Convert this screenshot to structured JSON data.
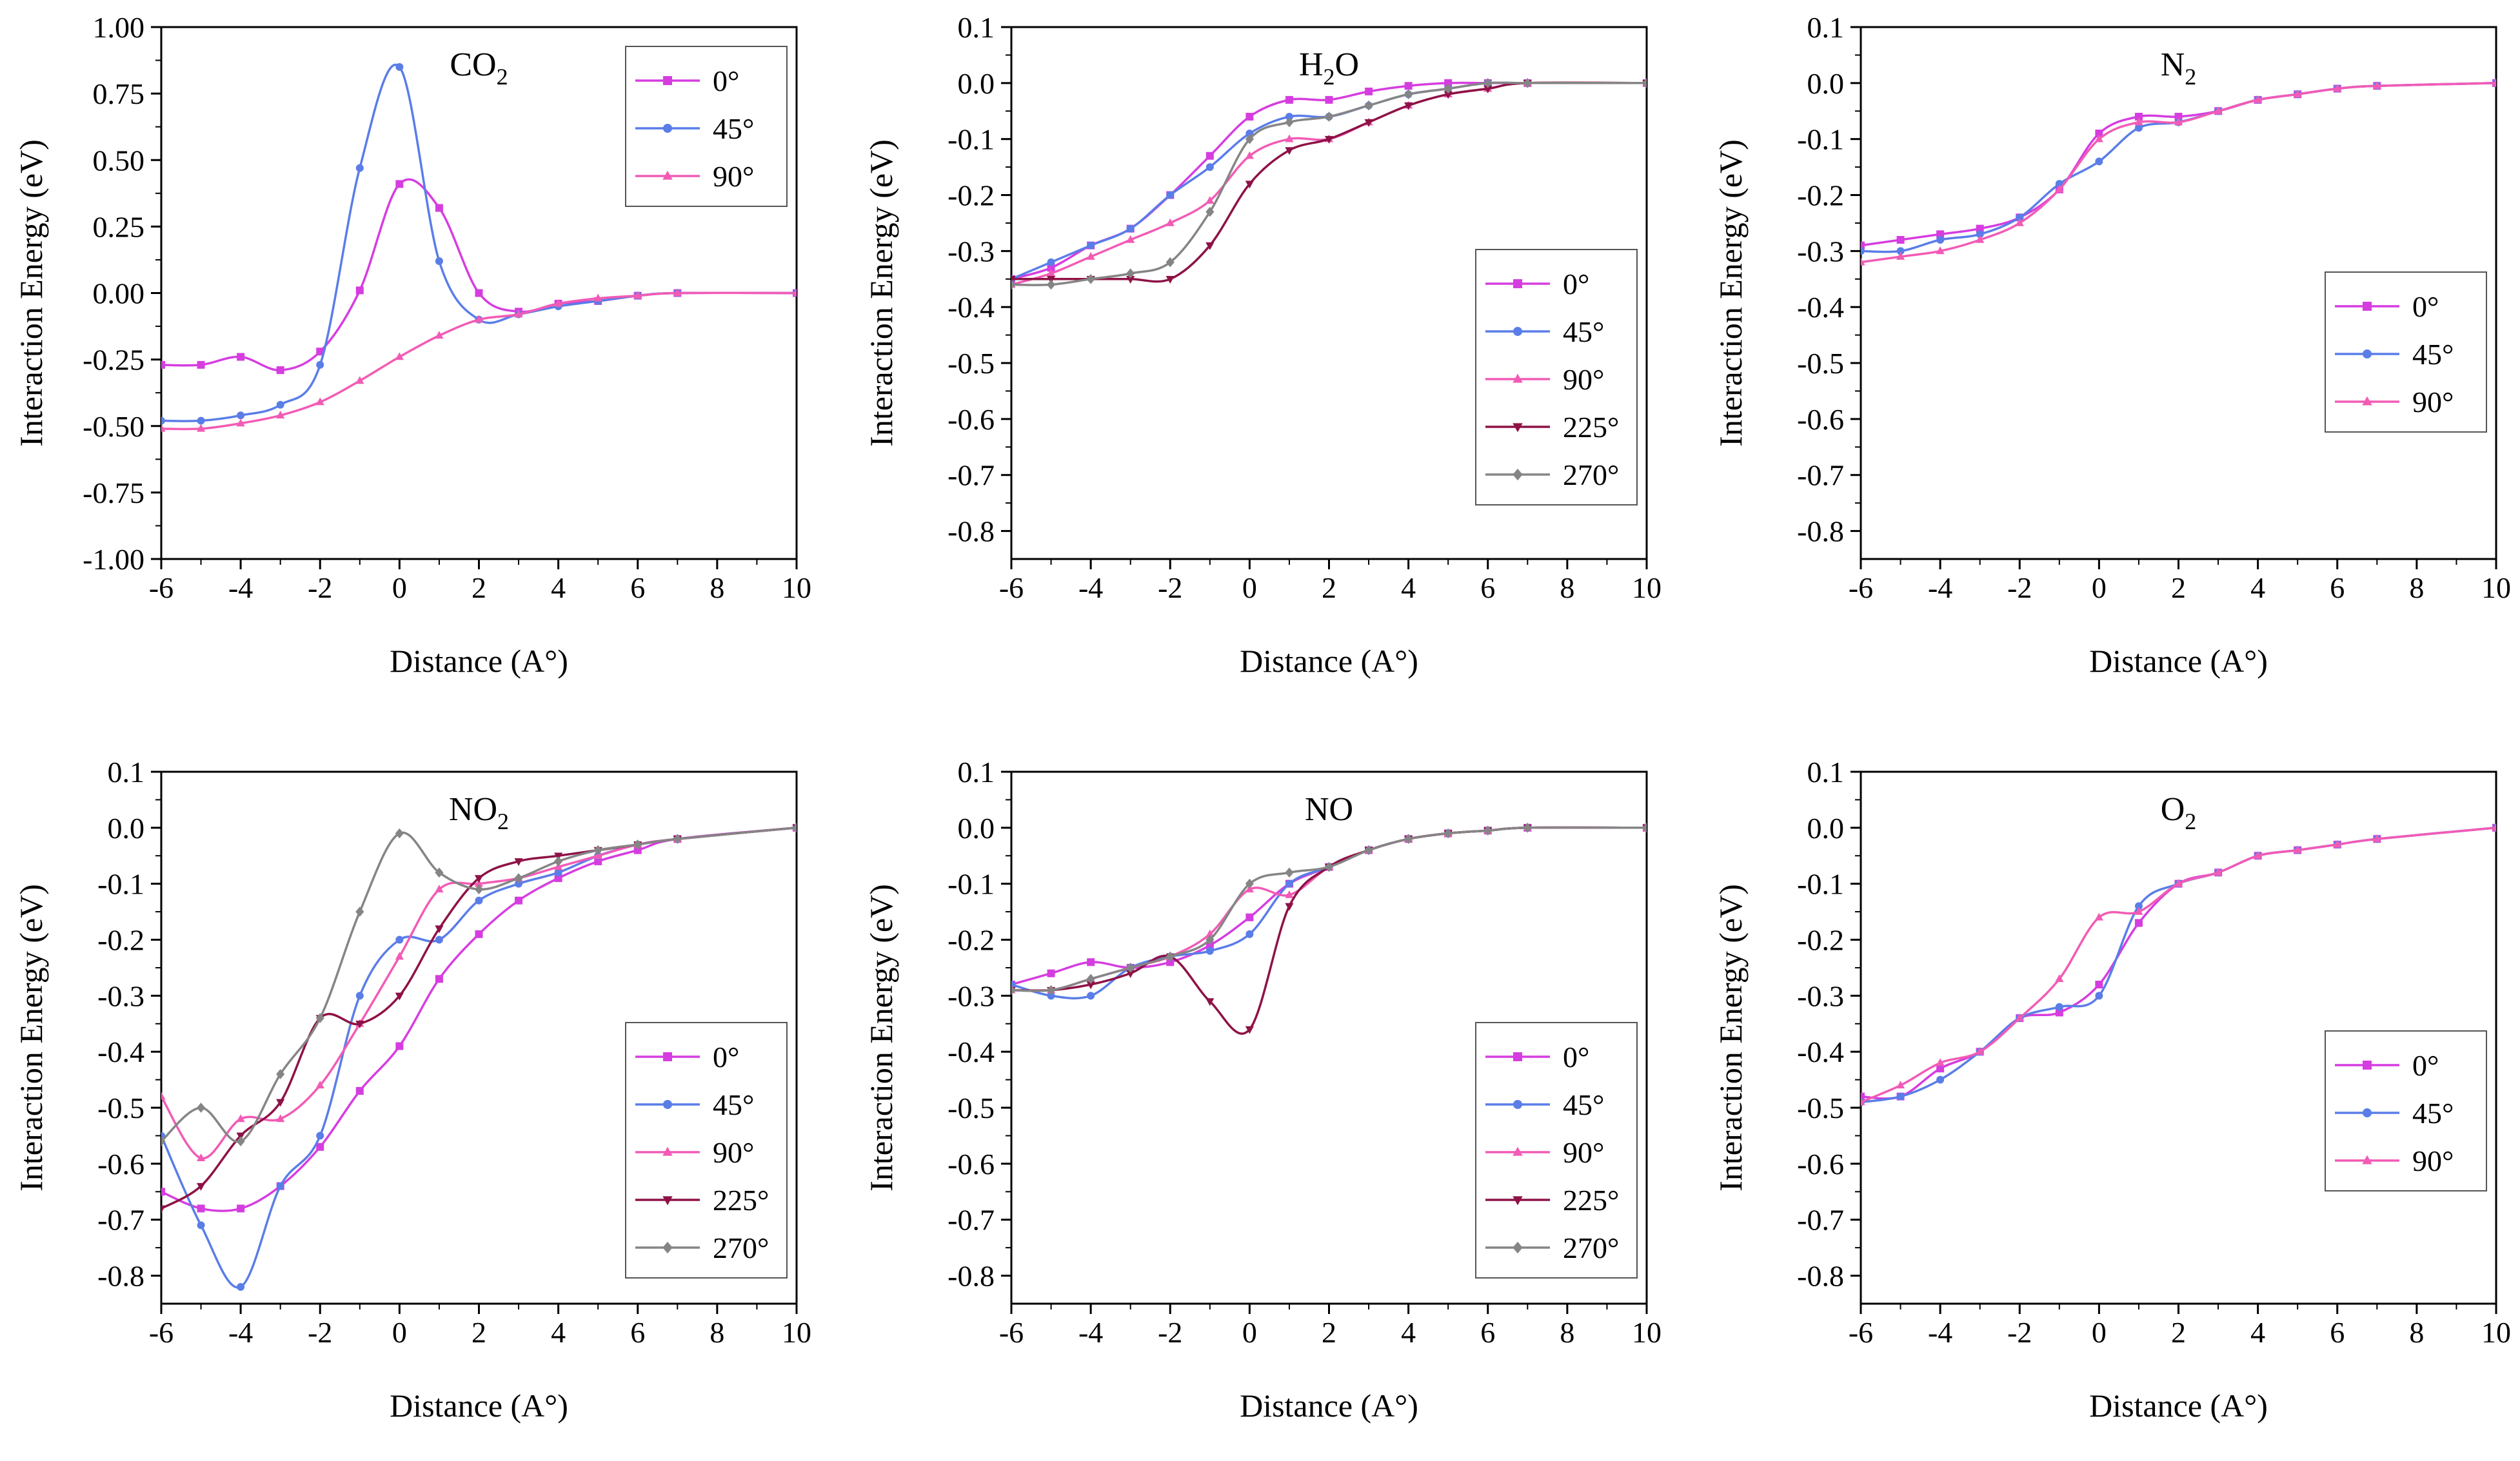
{
  "figure": {
    "xlabel": "Distance (A°)",
    "ylabel": "Interaction Energy (eV)",
    "colors": {
      "0°": "#d63de0",
      "45°": "#5a7de8",
      "90°": "#f25bb5",
      "225°": "#8e1246",
      "270°": "#858585"
    },
    "markers": {
      "0°": "square",
      "45°": "circle",
      "90°": "triangle-up",
      "225°": "triangle-down",
      "270°": "diamond"
    }
  },
  "chart_data": [
    {
      "type": "line",
      "title": "CO2",
      "title_main": "CO",
      "title_sub": "2",
      "xlabel": "Distance (A°)",
      "ylabel": "Interaction Energy (eV)",
      "xlim": [
        -6,
        10
      ],
      "ylim": [
        -1.0,
        1.0
      ],
      "xticks": [
        "-6",
        "-4",
        "-2",
        "0",
        "2",
        "4",
        "6",
        "8",
        "10"
      ],
      "yticks": [
        "1.00",
        "0.75",
        "0.50",
        "0.25",
        "0.00",
        "-0.25",
        "-0.50",
        "-0.75",
        "-1.00"
      ],
      "grid": false,
      "legend_position": "top-right",
      "series": [
        {
          "name": "0°",
          "x": [
            -6,
            -5,
            -4,
            -3,
            -2,
            -1,
            0,
            1,
            2,
            3,
            4,
            5,
            6,
            7,
            10
          ],
          "y": [
            -0.27,
            -0.27,
            -0.24,
            -0.29,
            -0.22,
            0.01,
            0.41,
            0.32,
            0.0,
            -0.07,
            -0.04,
            -0.03,
            -0.01,
            0.0,
            0.0
          ]
        },
        {
          "name": "45°",
          "x": [
            -6,
            -5,
            -4,
            -3,
            -2,
            -1,
            0,
            1,
            2,
            3,
            4,
            5,
            6,
            7,
            10
          ],
          "y": [
            -0.48,
            -0.48,
            -0.46,
            -0.42,
            -0.27,
            0.47,
            0.85,
            0.12,
            -0.1,
            -0.08,
            -0.05,
            -0.03,
            -0.01,
            0.0,
            0.0
          ]
        },
        {
          "name": "90°",
          "x": [
            -6,
            -5,
            -4,
            -3,
            -2,
            -1,
            0,
            1,
            2,
            3,
            4,
            5,
            6,
            7,
            10
          ],
          "y": [
            -0.51,
            -0.51,
            -0.49,
            -0.46,
            -0.41,
            -0.33,
            -0.24,
            -0.16,
            -0.1,
            -0.08,
            -0.04,
            -0.02,
            -0.01,
            0.0,
            0.0
          ]
        }
      ]
    },
    {
      "type": "line",
      "title": "H2O",
      "title_main": "H",
      "title_sub": "2",
      "title_tail": "O",
      "xlabel": "Distance (A°)",
      "ylabel": "Interaction Energy (eV)",
      "xlim": [
        -6,
        10
      ],
      "ylim": [
        -0.85,
        0.1
      ],
      "xticks": [
        "-6",
        "-4",
        "-2",
        "0",
        "2",
        "4",
        "6",
        "8",
        "10"
      ],
      "yticks": [
        "0.1",
        "0.0",
        "-0.1",
        "-0.2",
        "-0.3",
        "-0.4",
        "-0.5",
        "-0.6",
        "-0.7",
        "-0.8"
      ],
      "grid": false,
      "legend_position": "middle-right",
      "series": [
        {
          "name": "0°",
          "x": [
            -6,
            -5,
            -4,
            -3,
            -2,
            -1,
            0,
            1,
            2,
            3,
            4,
            5,
            6,
            7,
            10
          ],
          "y": [
            -0.35,
            -0.33,
            -0.29,
            -0.26,
            -0.2,
            -0.13,
            -0.06,
            -0.03,
            -0.03,
            -0.015,
            -0.005,
            0.0,
            0.0,
            0.0,
            0.0
          ]
        },
        {
          "name": "45°",
          "x": [
            -6,
            -5,
            -4,
            -3,
            -2,
            -1,
            0,
            1,
            2,
            3,
            4,
            5,
            6,
            7,
            10
          ],
          "y": [
            -0.35,
            -0.32,
            -0.29,
            -0.26,
            -0.2,
            -0.15,
            -0.09,
            -0.06,
            -0.06,
            -0.04,
            -0.02,
            -0.01,
            0.0,
            0.0,
            0.0
          ]
        },
        {
          "name": "90°",
          "x": [
            -6,
            -5,
            -4,
            -3,
            -2,
            -1,
            0,
            1,
            2,
            3,
            4,
            5,
            6,
            7,
            10
          ],
          "y": [
            -0.36,
            -0.34,
            -0.31,
            -0.28,
            -0.25,
            -0.21,
            -0.13,
            -0.1,
            -0.1,
            -0.07,
            -0.04,
            -0.02,
            -0.01,
            0.0,
            0.0
          ]
        },
        {
          "name": "225°",
          "x": [
            -6,
            -5,
            -4,
            -3,
            -2,
            -1,
            0,
            1,
            2,
            3,
            4,
            5,
            6,
            7,
            10
          ],
          "y": [
            -0.35,
            -0.35,
            -0.35,
            -0.35,
            -0.35,
            -0.29,
            -0.18,
            -0.12,
            -0.1,
            -0.07,
            -0.04,
            -0.02,
            -0.01,
            0.0,
            0.0
          ]
        },
        {
          "name": "270°",
          "x": [
            -6,
            -5,
            -4,
            -3,
            -2,
            -1,
            0,
            1,
            2,
            3,
            4,
            5,
            6,
            7,
            10
          ],
          "y": [
            -0.36,
            -0.36,
            -0.35,
            -0.34,
            -0.32,
            -0.23,
            -0.1,
            -0.07,
            -0.06,
            -0.04,
            -0.02,
            -0.01,
            0.0,
            0.0,
            0.0
          ]
        }
      ]
    },
    {
      "type": "line",
      "title": "N2",
      "title_main": "N",
      "title_sub": "2",
      "xlabel": "Distance (A°)",
      "ylabel": "Interaction Energy (eV)",
      "xlim": [
        -6,
        10
      ],
      "ylim": [
        -0.85,
        0.1
      ],
      "xticks": [
        "-6",
        "-4",
        "-2",
        "0",
        "2",
        "4",
        "6",
        "8",
        "10"
      ],
      "yticks": [
        "0.1",
        "0.0",
        "-0.1",
        "-0.2",
        "-0.3",
        "-0.4",
        "-0.5",
        "-0.6",
        "-0.7",
        "-0.8"
      ],
      "grid": false,
      "legend_position": "middle-right",
      "series": [
        {
          "name": "0°",
          "x": [
            -6,
            -5,
            -4,
            -3,
            -2,
            -1,
            0,
            1,
            2,
            3,
            4,
            5,
            6,
            7,
            10
          ],
          "y": [
            -0.29,
            -0.28,
            -0.27,
            -0.26,
            -0.24,
            -0.19,
            -0.09,
            -0.06,
            -0.06,
            -0.05,
            -0.03,
            -0.02,
            -0.01,
            -0.005,
            0.0
          ]
        },
        {
          "name": "45°",
          "x": [
            -6,
            -5,
            -4,
            -3,
            -2,
            -1,
            0,
            1,
            2,
            3,
            4,
            5,
            6,
            7,
            10
          ],
          "y": [
            -0.3,
            -0.3,
            -0.28,
            -0.27,
            -0.24,
            -0.18,
            -0.14,
            -0.08,
            -0.07,
            -0.05,
            -0.03,
            -0.02,
            -0.01,
            -0.005,
            0.0
          ]
        },
        {
          "name": "90°",
          "x": [
            -6,
            -5,
            -4,
            -3,
            -2,
            -1,
            0,
            1,
            2,
            3,
            4,
            5,
            6,
            7,
            10
          ],
          "y": [
            -0.32,
            -0.31,
            -0.3,
            -0.28,
            -0.25,
            -0.19,
            -0.1,
            -0.07,
            -0.07,
            -0.05,
            -0.03,
            -0.02,
            -0.01,
            -0.005,
            0.0
          ]
        }
      ]
    },
    {
      "type": "line",
      "title": "NO2",
      "title_main": "NO",
      "title_sub": "2",
      "xlabel": "Distance (A°)",
      "ylabel": "Interaction Energy (eV)",
      "xlim": [
        -6,
        10
      ],
      "ylim": [
        -0.85,
        0.1
      ],
      "xticks": [
        "-6",
        "-4",
        "-2",
        "0",
        "2",
        "4",
        "6",
        "8",
        "10"
      ],
      "yticks": [
        "0.1",
        "0.0",
        "-0.1",
        "-0.2",
        "-0.3",
        "-0.4",
        "-0.5",
        "-0.6",
        "-0.7",
        "-0.8"
      ],
      "grid": false,
      "legend_position": "bottom-right",
      "series": [
        {
          "name": "0°",
          "x": [
            -6,
            -5,
            -4,
            -3,
            -2,
            -1,
            0,
            1,
            2,
            3,
            4,
            5,
            6,
            7,
            10
          ],
          "y": [
            -0.65,
            -0.68,
            -0.68,
            -0.64,
            -0.57,
            -0.47,
            -0.39,
            -0.27,
            -0.19,
            -0.13,
            -0.09,
            -0.06,
            -0.04,
            -0.02,
            0.0
          ]
        },
        {
          "name": "45°",
          "x": [
            -6,
            -5,
            -4,
            -3,
            -2,
            -1,
            0,
            1,
            2,
            3,
            4,
            5,
            6,
            7,
            10
          ],
          "y": [
            -0.55,
            -0.71,
            -0.82,
            -0.64,
            -0.55,
            -0.3,
            -0.2,
            -0.2,
            -0.13,
            -0.1,
            -0.08,
            -0.05,
            -0.03,
            -0.02,
            0.0
          ]
        },
        {
          "name": "90°",
          "x": [
            -6,
            -5,
            -4,
            -3,
            -2,
            -1,
            0,
            1,
            2,
            3,
            4,
            5,
            6,
            7,
            10
          ],
          "y": [
            -0.48,
            -0.59,
            -0.52,
            -0.52,
            -0.46,
            -0.35,
            -0.23,
            -0.11,
            -0.1,
            -0.09,
            -0.07,
            -0.05,
            -0.03,
            -0.02,
            0.0
          ]
        },
        {
          "name": "225°",
          "x": [
            -6,
            -5,
            -4,
            -3,
            -2,
            -1,
            0,
            1,
            2,
            3,
            4,
            5,
            6,
            7,
            10
          ],
          "y": [
            -0.68,
            -0.64,
            -0.55,
            -0.49,
            -0.34,
            -0.35,
            -0.3,
            -0.18,
            -0.09,
            -0.06,
            -0.05,
            -0.04,
            -0.03,
            -0.02,
            0.0
          ]
        },
        {
          "name": "270°",
          "x": [
            -6,
            -5,
            -4,
            -3,
            -2,
            -1,
            0,
            1,
            2,
            3,
            4,
            5,
            6,
            7,
            10
          ],
          "y": [
            -0.56,
            -0.5,
            -0.56,
            -0.44,
            -0.34,
            -0.15,
            -0.01,
            -0.08,
            -0.11,
            -0.09,
            -0.06,
            -0.04,
            -0.03,
            -0.02,
            0.0
          ]
        }
      ]
    },
    {
      "type": "line",
      "title": "NO",
      "title_main": "NO",
      "xlabel": "Distance (A°)",
      "ylabel": "Interaction Energy (eV)",
      "xlim": [
        -6,
        10
      ],
      "ylim": [
        -0.85,
        0.1
      ],
      "xticks": [
        "-6",
        "-4",
        "-2",
        "0",
        "2",
        "4",
        "6",
        "8",
        "10"
      ],
      "yticks": [
        "0.1",
        "0.0",
        "-0.1",
        "-0.2",
        "-0.3",
        "-0.4",
        "-0.5",
        "-0.6",
        "-0.7",
        "-0.8"
      ],
      "grid": false,
      "legend_position": "bottom-right",
      "series": [
        {
          "name": "0°",
          "x": [
            -6,
            -5,
            -4,
            -3,
            -2,
            -1,
            0,
            1,
            2,
            3,
            4,
            5,
            6,
            7,
            10
          ],
          "y": [
            -0.28,
            -0.26,
            -0.24,
            -0.25,
            -0.24,
            -0.21,
            -0.16,
            -0.1,
            -0.07,
            -0.04,
            -0.02,
            -0.01,
            -0.005,
            0.0,
            0.0
          ]
        },
        {
          "name": "45°",
          "x": [
            -6,
            -5,
            -4,
            -3,
            -2,
            -1,
            0,
            1,
            2,
            3,
            4,
            5,
            6,
            7,
            10
          ],
          "y": [
            -0.28,
            -0.3,
            -0.3,
            -0.25,
            -0.23,
            -0.22,
            -0.19,
            -0.1,
            -0.07,
            -0.04,
            -0.02,
            -0.01,
            -0.005,
            0.0,
            0.0
          ]
        },
        {
          "name": "90°",
          "x": [
            -6,
            -5,
            -4,
            -3,
            -2,
            -1,
            0,
            1,
            2,
            3,
            4,
            5,
            6,
            7,
            10
          ],
          "y": [
            -0.29,
            -0.29,
            -0.27,
            -0.25,
            -0.23,
            -0.19,
            -0.11,
            -0.12,
            -0.07,
            -0.04,
            -0.02,
            -0.01,
            -0.005,
            0.0,
            0.0
          ]
        },
        {
          "name": "225°",
          "x": [
            -6,
            -5,
            -4,
            -3,
            -2,
            -1,
            0,
            1,
            2,
            3,
            4,
            5,
            6,
            7,
            10
          ],
          "y": [
            -0.29,
            -0.29,
            -0.28,
            -0.26,
            -0.23,
            -0.31,
            -0.36,
            -0.14,
            -0.07,
            -0.04,
            -0.02,
            -0.01,
            -0.005,
            0.0,
            0.0
          ]
        },
        {
          "name": "270°",
          "x": [
            -6,
            -5,
            -4,
            -3,
            -2,
            -1,
            0,
            1,
            2,
            3,
            4,
            5,
            6,
            7,
            10
          ],
          "y": [
            -0.29,
            -0.29,
            -0.27,
            -0.25,
            -0.23,
            -0.2,
            -0.1,
            -0.08,
            -0.07,
            -0.04,
            -0.02,
            -0.01,
            -0.005,
            0.0,
            0.0
          ]
        }
      ]
    },
    {
      "type": "line",
      "title": "O2",
      "title_main": "O",
      "title_sub": "2",
      "xlabel": "Distance (A°)",
      "ylabel": "Interaction Energy (eV)",
      "xlim": [
        -6,
        10
      ],
      "ylim": [
        -0.85,
        0.1
      ],
      "xticks": [
        "-6",
        "-4",
        "-2",
        "0",
        "2",
        "4",
        "6",
        "8",
        "10"
      ],
      "yticks": [
        "0.1",
        "0.0",
        "-0.1",
        "-0.2",
        "-0.3",
        "-0.4",
        "-0.5",
        "-0.6",
        "-0.7",
        "-0.8"
      ],
      "grid": false,
      "legend_position": "bottom-right",
      "series": [
        {
          "name": "0°",
          "x": [
            -6,
            -5,
            -4,
            -3,
            -2,
            -1,
            0,
            1,
            2,
            3,
            4,
            5,
            6,
            7,
            10
          ],
          "y": [
            -0.48,
            -0.48,
            -0.43,
            -0.4,
            -0.34,
            -0.33,
            -0.28,
            -0.17,
            -0.1,
            -0.08,
            -0.05,
            -0.04,
            -0.03,
            -0.02,
            0.0
          ]
        },
        {
          "name": "45°",
          "x": [
            -6,
            -5,
            -4,
            -3,
            -2,
            -1,
            0,
            1,
            2,
            3,
            4,
            5,
            6,
            7,
            10
          ],
          "y": [
            -0.49,
            -0.48,
            -0.45,
            -0.4,
            -0.34,
            -0.32,
            -0.3,
            -0.14,
            -0.1,
            -0.08,
            -0.05,
            -0.04,
            -0.03,
            -0.02,
            0.0
          ]
        },
        {
          "name": "90°",
          "x": [
            -6,
            -5,
            -4,
            -3,
            -2,
            -1,
            0,
            1,
            2,
            3,
            4,
            5,
            6,
            7,
            10
          ],
          "y": [
            -0.49,
            -0.46,
            -0.42,
            -0.4,
            -0.34,
            -0.27,
            -0.16,
            -0.15,
            -0.1,
            -0.08,
            -0.05,
            -0.04,
            -0.03,
            -0.02,
            0.0
          ]
        }
      ]
    }
  ]
}
